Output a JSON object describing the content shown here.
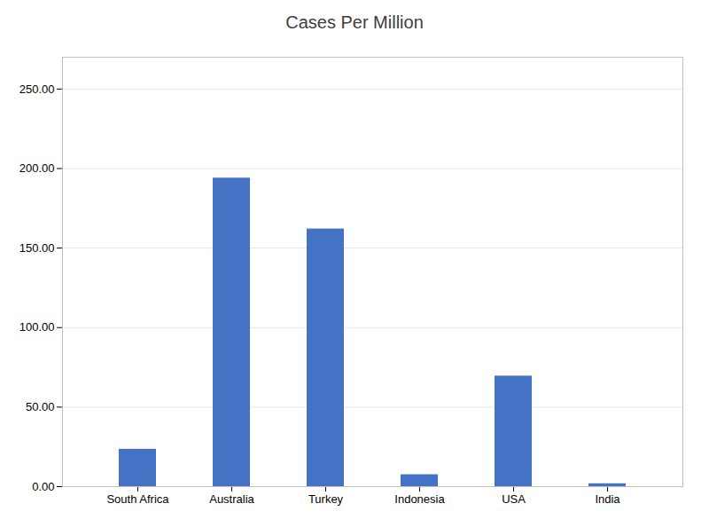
{
  "chart_data": {
    "type": "bar",
    "title": "Cases Per Million",
    "categories": [
      "South Africa",
      "Australia",
      "Turkey",
      "Indonesia",
      "USA",
      "India"
    ],
    "values": [
      23.5,
      194.0,
      162.0,
      7.5,
      69.5,
      1.8
    ],
    "color": "#4472C4",
    "ylim": [
      0,
      270
    ],
    "yticks": [
      {
        "value": 0,
        "label": "0.00"
      },
      {
        "value": 50,
        "label": "50.00"
      },
      {
        "value": 100,
        "label": "100.00"
      },
      {
        "value": 150,
        "label": "150.00"
      },
      {
        "value": 200,
        "label": "200.00"
      },
      {
        "value": 250,
        "label": "250.00"
      }
    ],
    "grid": true
  }
}
